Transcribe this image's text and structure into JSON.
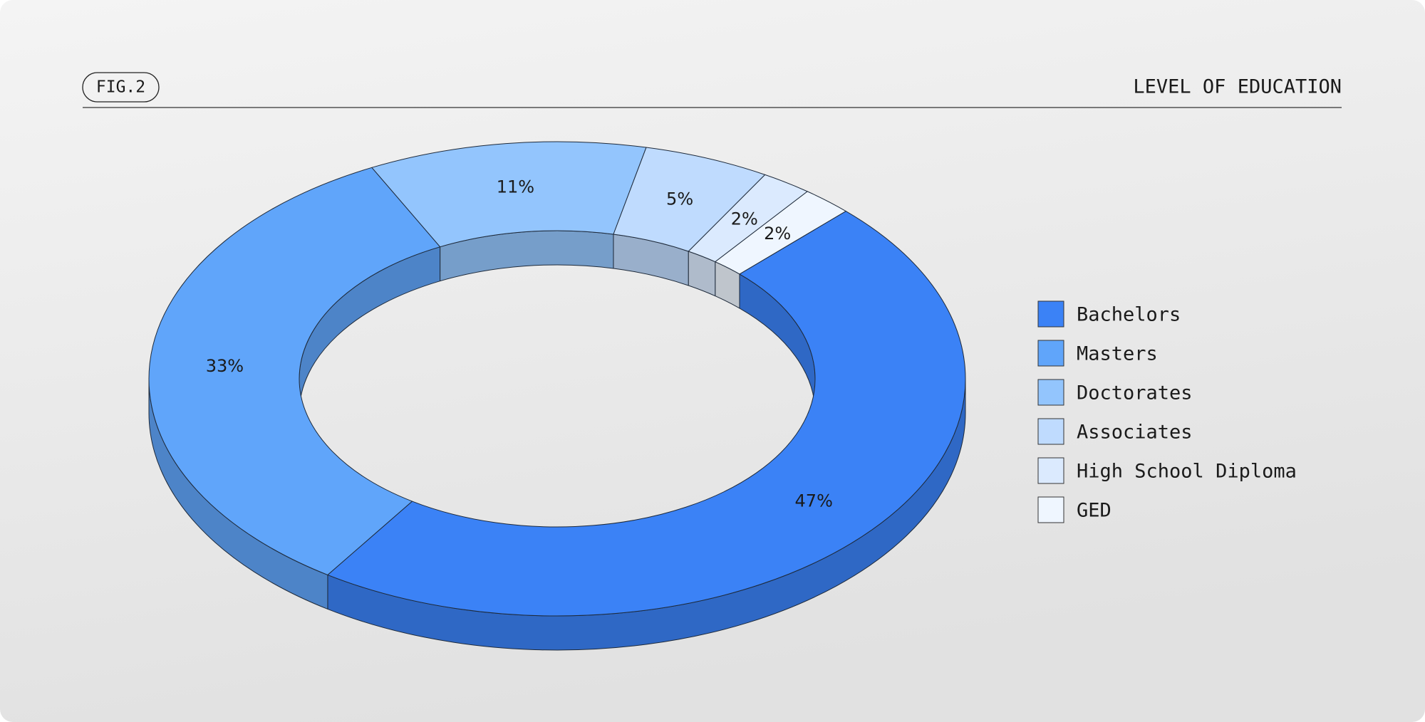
{
  "chart_data": {
    "type": "pie",
    "title": "LEVEL OF EDUCATION",
    "label": "FIG.2",
    "categories": [
      "Bachelors",
      "Masters",
      "Doctorates",
      "Associates",
      "High School Diploma",
      "GED"
    ],
    "values": [
      47,
      33,
      11,
      5,
      2,
      2
    ],
    "value_labels": [
      "47%",
      "33%",
      "11%",
      "5%",
      "2%",
      "2%"
    ],
    "colors": [
      "#3b82f6",
      "#60a5fa",
      "#93c5fd",
      "#bfdbfe",
      "#dbeafe",
      "#eff6ff"
    ],
    "legend": "right"
  }
}
